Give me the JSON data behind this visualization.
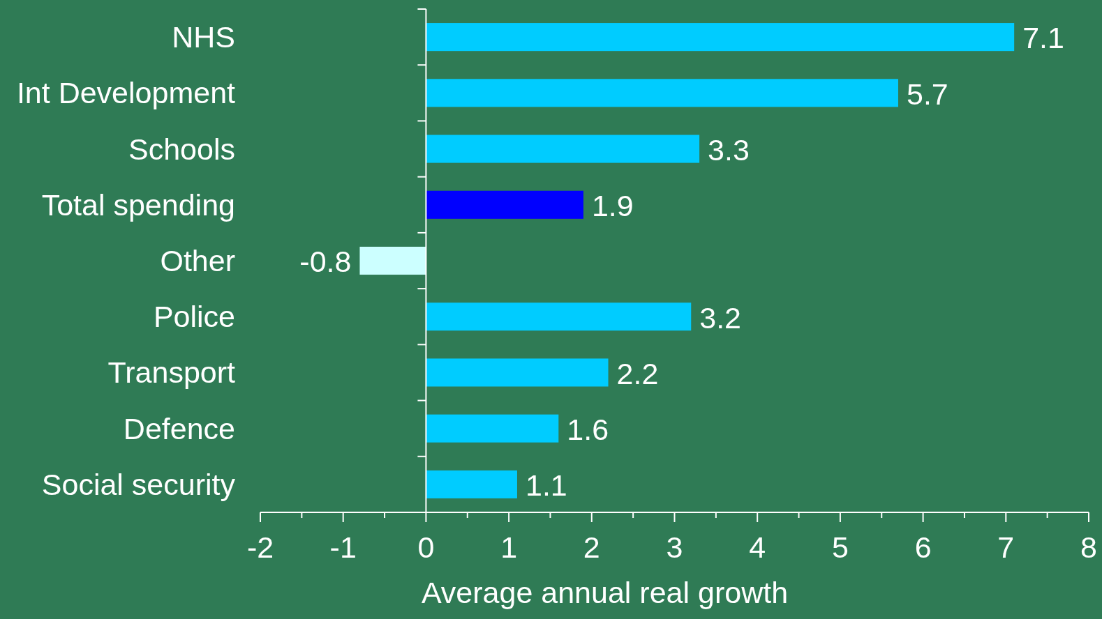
{
  "chart_data": {
    "type": "bar",
    "orientation": "horizontal",
    "xlabel": "Average annual real growth",
    "categories": [
      "NHS",
      "Int Development",
      "Schools",
      "Total spending",
      "Other",
      "Police",
      "Transport",
      "Defence",
      "Social security"
    ],
    "values": [
      7.1,
      5.7,
      3.3,
      1.9,
      -0.8,
      3.2,
      2.2,
      1.6,
      1.1
    ],
    "colors": [
      "#00ccff",
      "#00ccff",
      "#00ccff",
      "#0000ff",
      "#ccffff",
      "#00ccff",
      "#00ccff",
      "#00ccff",
      "#00ccff"
    ],
    "xlim": [
      -2,
      8
    ],
    "xticks": [
      -2,
      {
        "value": -1.5,
        "label": null
      },
      -1,
      {
        "value": -0.5,
        "label": null
      },
      0,
      {
        "value": 0.5,
        "label": null
      },
      1,
      {
        "value": 1.5,
        "label": null
      },
      2,
      {
        "value": 2.5,
        "label": null
      },
      3,
      {
        "value": 3.5,
        "label": null
      },
      4,
      {
        "value": 4.5,
        "label": null
      },
      5,
      {
        "value": 5.5,
        "label": null
      },
      6,
      {
        "value": 6.5,
        "label": null
      },
      7,
      {
        "value": 7.5,
        "label": null
      },
      8
    ],
    "data_labels": true
  }
}
